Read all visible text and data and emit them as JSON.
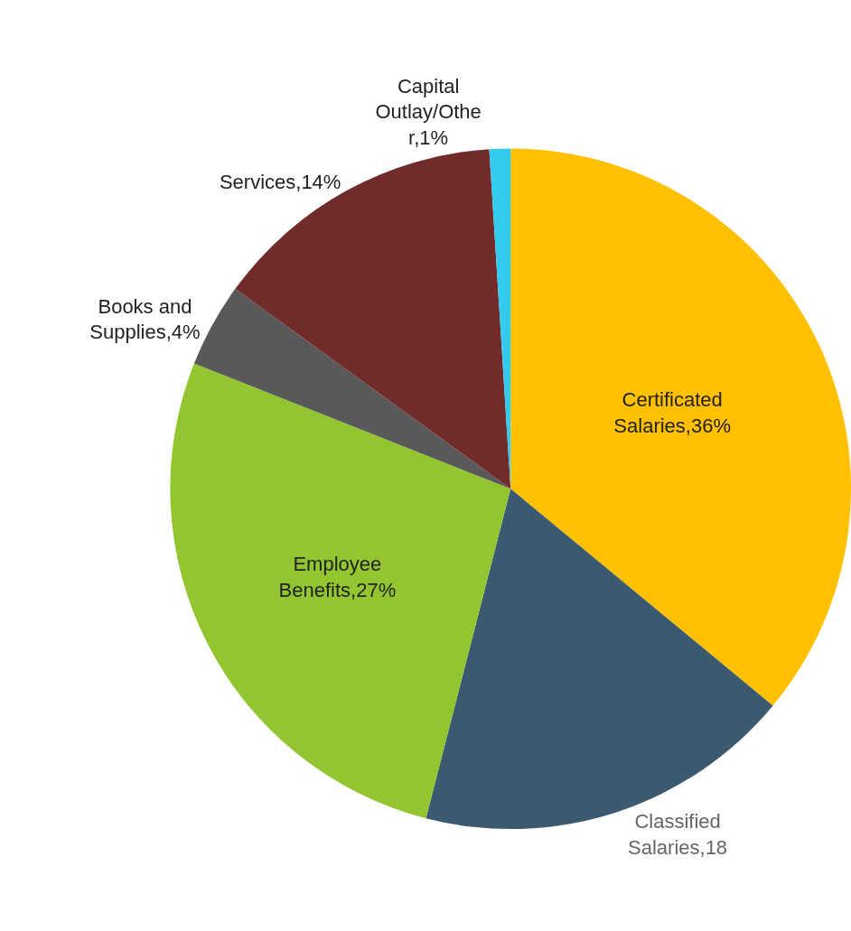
{
  "chart_data": {
    "type": "pie",
    "categories": [
      "Certificated Salaries,36%",
      "Classified Salaries,18",
      "Employee Benefits,27%",
      "Books and Supplies,4%",
      "Services,14%",
      "Capital Outlay/Other,1%"
    ],
    "values": [
      36,
      18,
      27,
      4,
      14,
      1
    ],
    "colors": [
      "#ffc000",
      "#3b5a6f",
      "#92c530",
      "#595959",
      "#722b2b",
      "#33ccee"
    ],
    "legend": false
  }
}
